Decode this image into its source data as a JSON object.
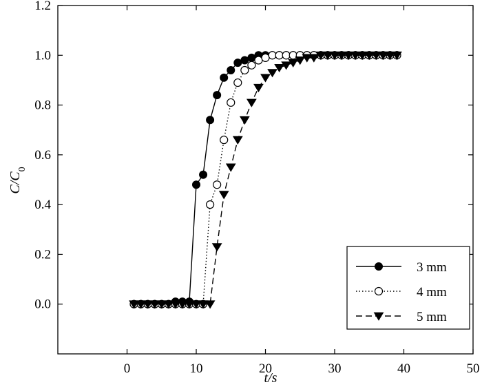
{
  "chart_data": {
    "type": "line",
    "title": "",
    "xlabel": "t/s",
    "ylabel": "C/C0",
    "xlim": [
      -10,
      50
    ],
    "ylim": [
      -0.2,
      1.2
    ],
    "xticks": [
      0,
      10,
      20,
      30,
      40,
      50
    ],
    "yticks": [
      0.0,
      0.2,
      0.4,
      0.6,
      0.8,
      1.0,
      1.2
    ],
    "xtick_labels": [
      "0",
      "10",
      "20",
      "30",
      "40",
      "50"
    ],
    "ytick_labels": [
      "0.0",
      "0.2",
      "0.4",
      "0.6",
      "0.8",
      "1.0",
      "1.2"
    ],
    "grid": false,
    "legend_position": "bottom-right",
    "series": [
      {
        "name": "3 mm",
        "line_style": "solid",
        "marker": "filled-circle",
        "color": "#000000",
        "x": [
          1,
          2,
          3,
          4,
          5,
          6,
          7,
          8,
          9,
          10,
          11,
          12,
          13,
          14,
          15,
          16,
          17,
          18,
          19,
          20,
          21,
          22,
          23,
          24,
          25,
          26,
          27,
          28,
          29,
          30,
          31,
          32,
          33,
          34,
          35,
          36,
          37,
          38,
          39
        ],
        "y": [
          0.0,
          0.0,
          0.0,
          0.0,
          0.0,
          0.0,
          0.01,
          0.01,
          0.01,
          0.48,
          0.52,
          0.74,
          0.84,
          0.91,
          0.94,
          0.97,
          0.98,
          0.99,
          1.0,
          1.0,
          1.0,
          1.0,
          1.0,
          1.0,
          1.0,
          1.0,
          1.0,
          1.0,
          1.0,
          1.0,
          1.0,
          1.0,
          1.0,
          1.0,
          1.0,
          1.0,
          1.0,
          1.0,
          1.0
        ]
      },
      {
        "name": "4 mm",
        "line_style": "dotted",
        "marker": "open-circle",
        "color": "#000000",
        "x": [
          1,
          2,
          3,
          4,
          5,
          6,
          7,
          8,
          9,
          10,
          11,
          12,
          13,
          14,
          15,
          16,
          17,
          18,
          19,
          20,
          21,
          22,
          23,
          24,
          25,
          26,
          27,
          28,
          29,
          30,
          31,
          32,
          33,
          34,
          35,
          36,
          37,
          38,
          39
        ],
        "y": [
          0.0,
          0.0,
          0.0,
          0.0,
          0.0,
          0.0,
          0.0,
          0.0,
          0.0,
          0.0,
          0.0,
          0.4,
          0.48,
          0.66,
          0.81,
          0.89,
          0.94,
          0.96,
          0.98,
          0.99,
          1.0,
          1.0,
          1.0,
          1.0,
          1.0,
          1.0,
          1.0,
          1.0,
          1.0,
          1.0,
          1.0,
          1.0,
          1.0,
          1.0,
          1.0,
          1.0,
          1.0,
          1.0,
          1.0
        ]
      },
      {
        "name": "5 mm",
        "line_style": "dashed",
        "marker": "filled-triangle-down",
        "color": "#000000",
        "x": [
          1,
          2,
          3,
          4,
          5,
          6,
          7,
          8,
          9,
          10,
          11,
          12,
          13,
          14,
          15,
          16,
          17,
          18,
          19,
          20,
          21,
          22,
          23,
          24,
          25,
          26,
          27,
          28,
          29,
          30,
          31,
          32,
          33,
          34,
          35,
          36,
          37,
          38,
          39
        ],
        "y": [
          0.0,
          0.0,
          0.0,
          0.0,
          0.0,
          0.0,
          0.0,
          0.0,
          0.0,
          0.0,
          0.0,
          0.0,
          0.23,
          0.44,
          0.55,
          0.66,
          0.74,
          0.81,
          0.87,
          0.91,
          0.93,
          0.95,
          0.96,
          0.97,
          0.98,
          0.99,
          0.99,
          1.0,
          1.0,
          1.0,
          1.0,
          1.0,
          1.0,
          1.0,
          1.0,
          1.0,
          1.0,
          1.0,
          1.0
        ]
      }
    ]
  }
}
